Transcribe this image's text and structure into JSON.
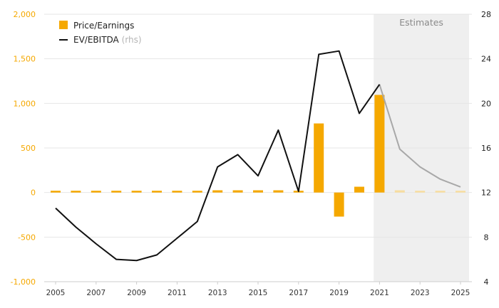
{
  "chart_data": {
    "type": "bar",
    "title": "",
    "categories": [
      2005,
      2006,
      2007,
      2008,
      2009,
      2010,
      2011,
      2012,
      2013,
      2014,
      2015,
      2016,
      2017,
      2018,
      2019,
      2020,
      2021,
      2022,
      2023,
      2024,
      2025
    ],
    "x_tick_labels": [
      "2005",
      "2007",
      "2009",
      "2011",
      "2013",
      "2015",
      "2017",
      "2019",
      "2021",
      "2023",
      "2025"
    ],
    "y_left": {
      "ylim": [
        -1000,
        2000
      ],
      "ticks": [
        -1000,
        -500,
        0,
        500,
        1000,
        1500,
        2000
      ],
      "tick_labels": [
        "-1,000",
        "-500",
        "0",
        "500",
        "1,000",
        "1,500",
        "2,000"
      ]
    },
    "y_right": {
      "ylim": [
        4,
        28
      ],
      "ticks": [
        4,
        8,
        12,
        16,
        20,
        24,
        28
      ],
      "tick_labels": [
        "4",
        "8",
        "12",
        "16",
        "20",
        "24",
        "28"
      ]
    },
    "series": [
      {
        "name": "Price/Earnings",
        "type": "bar",
        "axis": "left",
        "color": "#F5A800",
        "estimate_color": "#F7DDA0",
        "values": [
          15,
          12,
          15,
          12,
          12,
          12,
          12,
          18,
          25,
          25,
          25,
          25,
          20,
          775,
          -270,
          65,
          1095,
          25,
          18,
          18,
          12
        ]
      },
      {
        "name": "EV/EBITDA",
        "name_note": "(rhs)",
        "type": "line",
        "axis": "right",
        "color": "#111111",
        "estimate_color": "#A8A8A8",
        "values": [
          10.6,
          8.9,
          7.4,
          6.0,
          5.9,
          6.4,
          7.9,
          9.4,
          14.3,
          15.4,
          13.5,
          17.6,
          12.1,
          24.4,
          24.7,
          19.1,
          21.7,
          15.9,
          14.3,
          13.2,
          12.5
        ]
      }
    ],
    "estimates": {
      "label": "Estimates",
      "from": 2021,
      "to": 2025,
      "shade_color": "#EFEFEF"
    },
    "grid": true,
    "legend_position": "top-left"
  },
  "legend": {
    "pe_label": "Price/Earnings",
    "ev_label": "EV/EBITDA",
    "ev_note": "(rhs)"
  }
}
